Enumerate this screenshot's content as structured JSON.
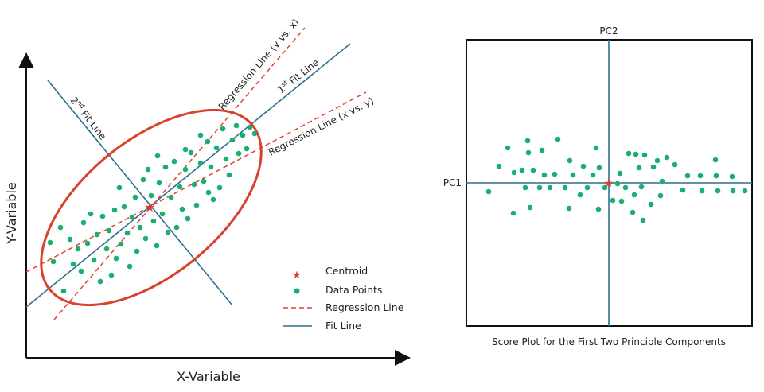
{
  "left_panel": {
    "x_label": "X-Variable",
    "y_label": "Y-Variable",
    "annotations": {
      "second_fit_prefix": "2",
      "second_fit_sup": "nd",
      "second_fit_suffix": " Fit Line",
      "first_fit_prefix": "1",
      "first_fit_sup": "st",
      "first_fit_suffix": " Fit Line",
      "regression_y_vs_x": "Regression Line (y vs. x)",
      "regression_x_vs_y": "Regression Line (x vs. y)"
    },
    "legend": {
      "centroid": "Centroid",
      "data_points": "Data Points",
      "regression_line": "Regression Line",
      "fit_line": "Fit Line"
    }
  },
  "right_panel": {
    "pc1_label": "PC1",
    "pc2_label": "PC2",
    "caption": "Score Plot for the First Two Principle Components"
  },
  "colors": {
    "points": "#1aae6f",
    "centroid": "#e03a2a",
    "ellipse": "#d8412b",
    "regression": "#e0452f",
    "fit_line": "#2d6f8e",
    "axis": "#111111"
  }
}
